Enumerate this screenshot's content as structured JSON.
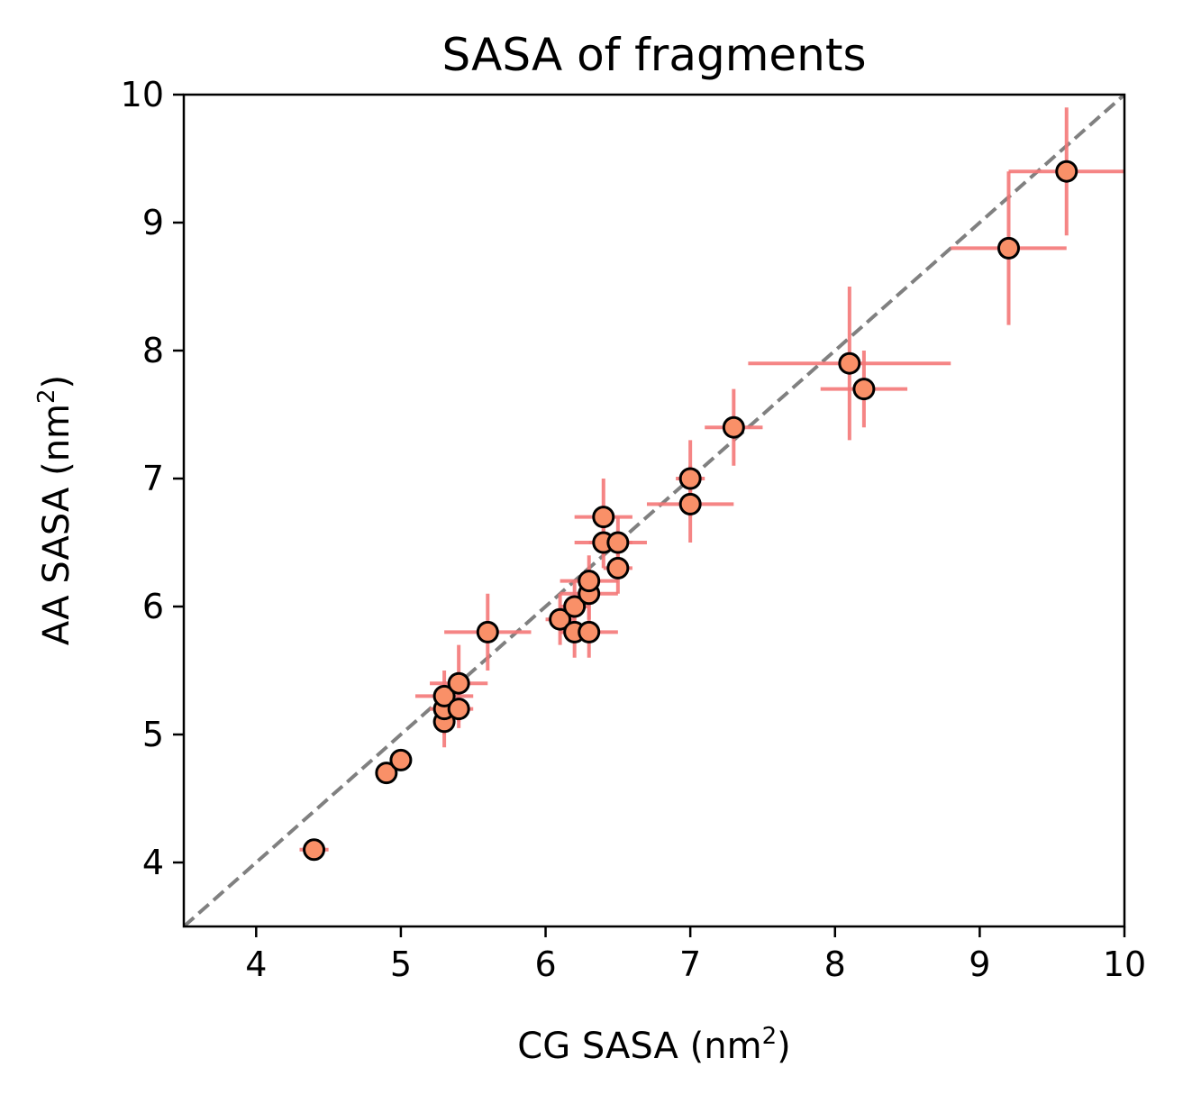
{
  "chart_data": {
    "type": "scatter",
    "title": "SASA of fragments",
    "xlabel": "CG SASA (nm",
    "ylabel": "AA SASA (nm",
    "unit_superscript": "2",
    "label_close": ")",
    "xlim": [
      3.5,
      10
    ],
    "ylim": [
      3.5,
      10
    ],
    "xticks": [
      4,
      5,
      6,
      7,
      8,
      9,
      10
    ],
    "yticks": [
      4,
      5,
      6,
      7,
      8,
      9,
      10
    ],
    "grid": false,
    "reference_line": {
      "style": "dashed",
      "slope": 1,
      "intercept": 0
    },
    "colors": {
      "marker_fill": "#f99068",
      "marker_edge": "#000000",
      "errorbar": "#f47878",
      "reference_line": "#808080"
    },
    "points": [
      {
        "x": 4.4,
        "y": 4.1,
        "xerr": 0.1,
        "yerr": 0.05
      },
      {
        "x": 4.9,
        "y": 4.7,
        "xerr": 0.05,
        "yerr": 0.05
      },
      {
        "x": 5.0,
        "y": 4.8,
        "xerr": 0.05,
        "yerr": 0.05
      },
      {
        "x": 5.3,
        "y": 5.1,
        "xerr": 0.05,
        "yerr": 0.2
      },
      {
        "x": 5.3,
        "y": 5.2,
        "xerr": 0.1,
        "yerr": 0.2
      },
      {
        "x": 5.3,
        "y": 5.3,
        "xerr": 0.2,
        "yerr": 0.2
      },
      {
        "x": 5.4,
        "y": 5.4,
        "xerr": 0.2,
        "yerr": 0.3
      },
      {
        "x": 5.4,
        "y": 5.2,
        "xerr": 0.1,
        "yerr": 0.15
      },
      {
        "x": 5.6,
        "y": 5.8,
        "xerr": 0.3,
        "yerr": 0.3
      },
      {
        "x": 6.1,
        "y": 5.9,
        "xerr": 0.1,
        "yerr": 0.2
      },
      {
        "x": 6.2,
        "y": 5.8,
        "xerr": 0.1,
        "yerr": 0.2
      },
      {
        "x": 6.2,
        "y": 6.0,
        "xerr": 0.1,
        "yerr": 0.2
      },
      {
        "x": 6.3,
        "y": 5.8,
        "xerr": 0.2,
        "yerr": 0.2
      },
      {
        "x": 6.3,
        "y": 6.1,
        "xerr": 0.2,
        "yerr": 0.2
      },
      {
        "x": 6.3,
        "y": 6.2,
        "xerr": 0.2,
        "yerr": 0.2
      },
      {
        "x": 6.4,
        "y": 6.5,
        "xerr": 0.2,
        "yerr": 0.2
      },
      {
        "x": 6.4,
        "y": 6.7,
        "xerr": 0.2,
        "yerr": 0.3
      },
      {
        "x": 6.5,
        "y": 6.5,
        "xerr": 0.2,
        "yerr": 0.2
      },
      {
        "x": 6.5,
        "y": 6.3,
        "xerr": 0.1,
        "yerr": 0.2
      },
      {
        "x": 7.0,
        "y": 7.0,
        "xerr": 0.1,
        "yerr": 0.3
      },
      {
        "x": 7.0,
        "y": 6.8,
        "xerr": 0.3,
        "yerr": 0.3
      },
      {
        "x": 7.3,
        "y": 7.4,
        "xerr": 0.2,
        "yerr": 0.3
      },
      {
        "x": 8.1,
        "y": 7.9,
        "xerr": 0.7,
        "yerr": 0.6
      },
      {
        "x": 8.2,
        "y": 7.7,
        "xerr": 0.3,
        "yerr": 0.3
      },
      {
        "x": 9.2,
        "y": 8.8,
        "xerr": 0.4,
        "yerr": 0.6
      },
      {
        "x": 9.6,
        "y": 9.4,
        "xerr": 0.4,
        "yerr": 0.5
      }
    ]
  }
}
